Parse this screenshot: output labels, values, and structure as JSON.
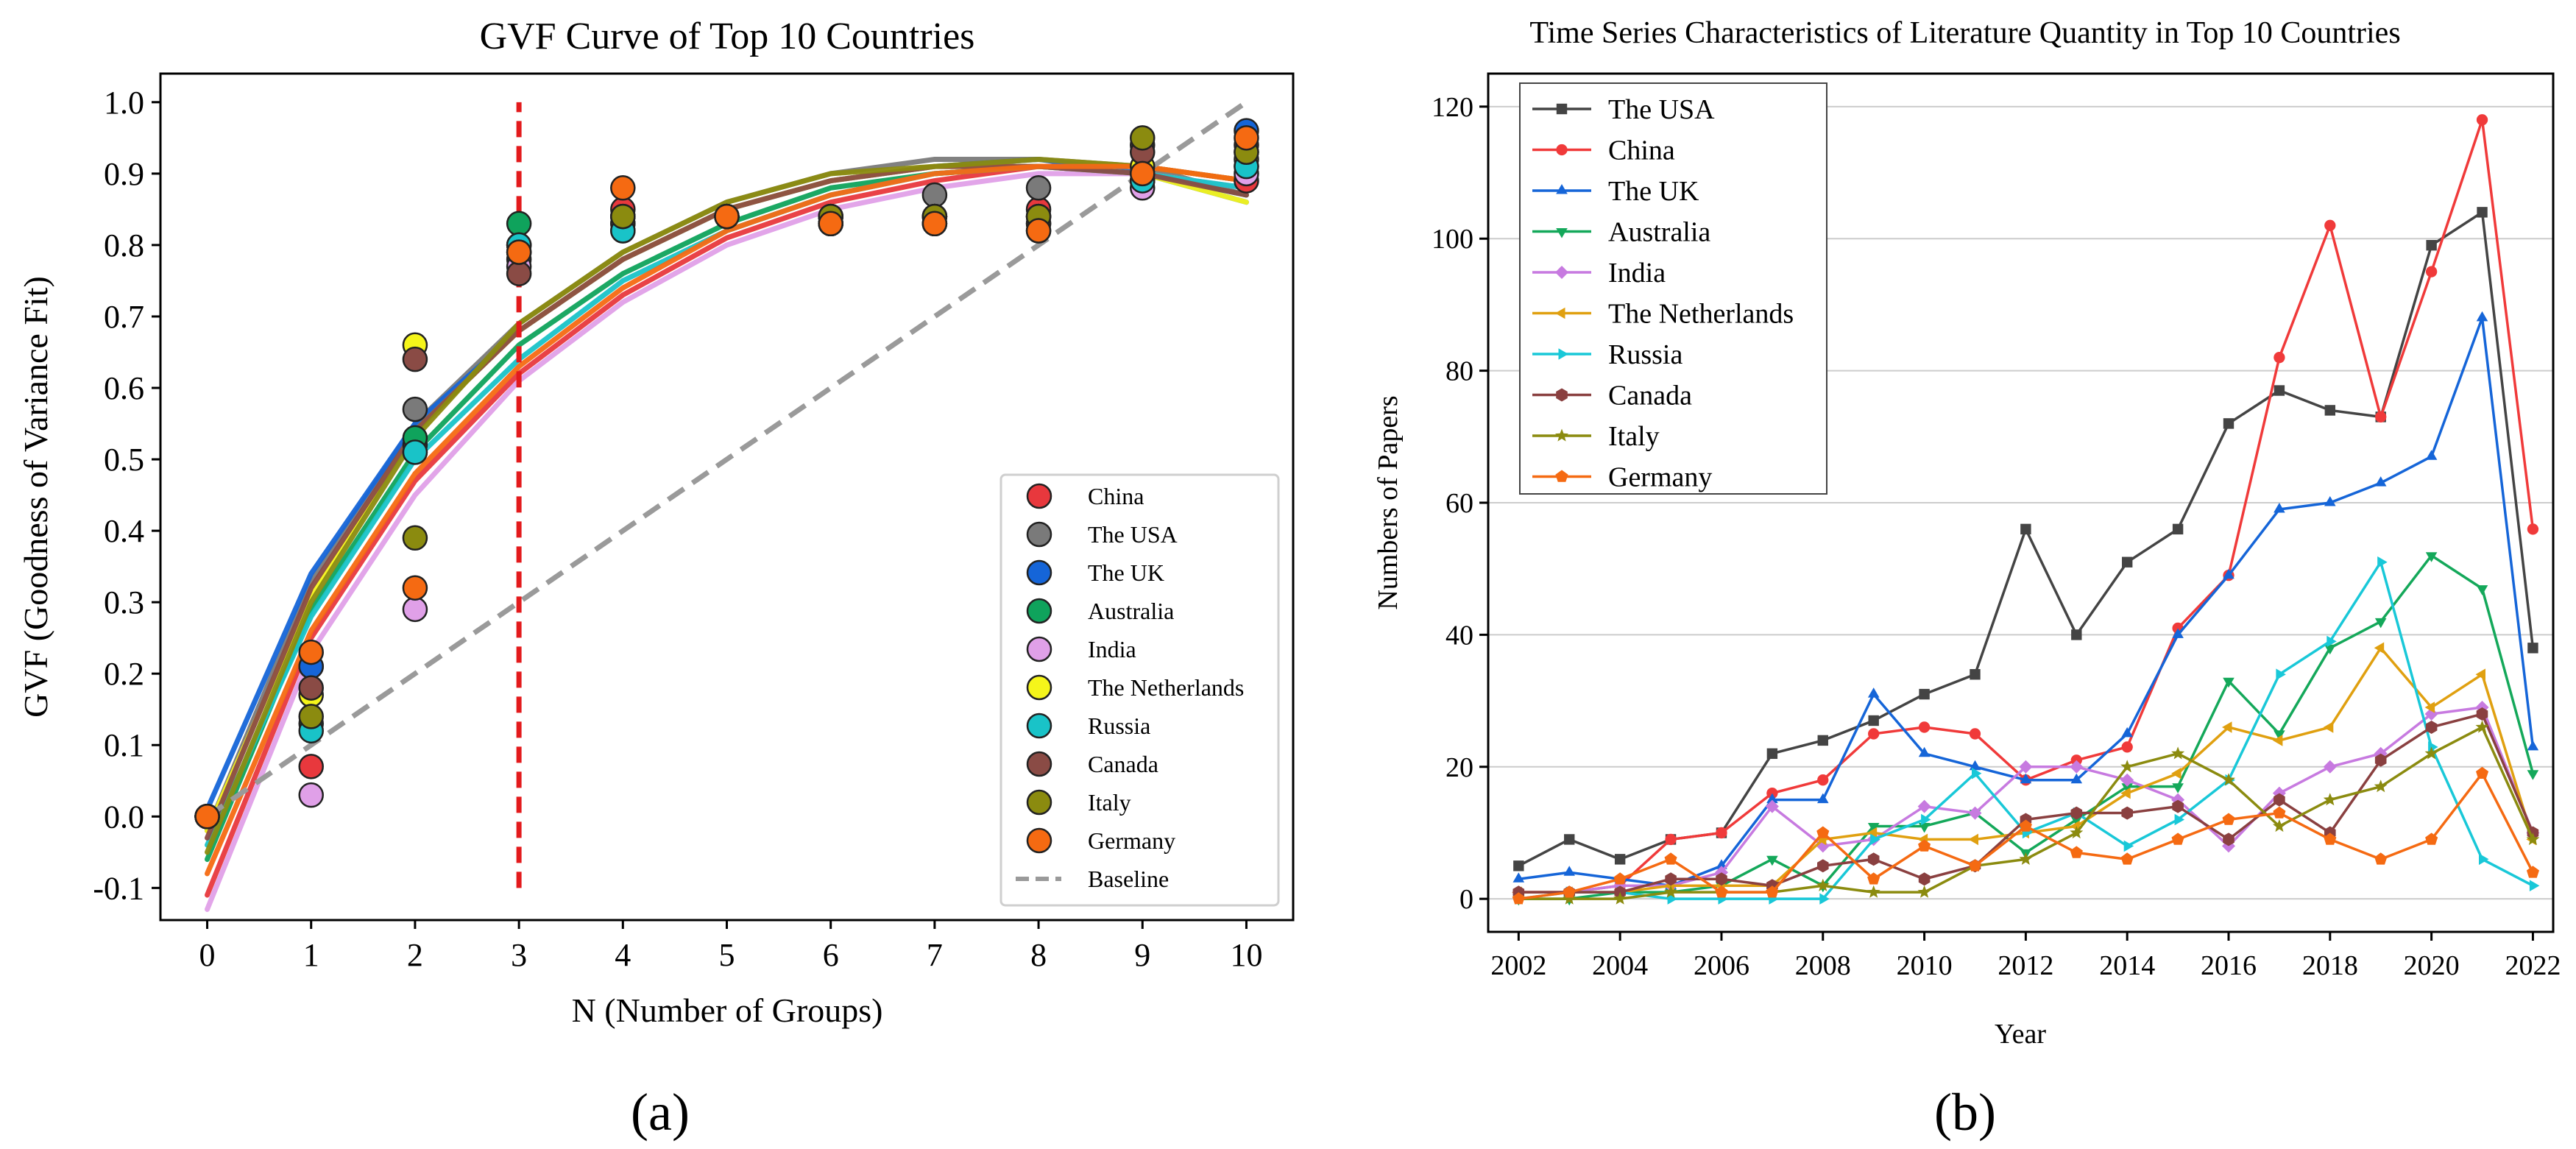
{
  "colors": {
    "China": "#e8383d",
    "The USA": "#7a7a7a",
    "The UK": "#1565d8",
    "Australia": "#0fa35c",
    "India": "#e0a0e8",
    "The Netherlands": "#f5f51a",
    "Russia": "#19c3c8",
    "Canada": "#8a4b45",
    "Italy": "#8b8b0f",
    "Germany": "#f56a12",
    "Baseline": "#9a9a9a",
    "Threshold": "#e31a1c"
  },
  "line_colors_b": {
    "The USA": "#444444",
    "China": "#f03a3a",
    "The UK": "#1565d8",
    "Australia": "#14a85a",
    "India": "#c77ae0",
    "The Netherlands": "#e0a010",
    "Russia": "#19c8d8",
    "Canada": "#8a4040",
    "Italy": "#8b8b0f",
    "Germany": "#f56a12"
  },
  "markers_b": {
    "The USA": "square",
    "China": "circle",
    "The UK": "triangle-up",
    "Australia": "triangle-down",
    "India": "diamond",
    "The Netherlands": "triangle-left",
    "Russia": "triangle-right",
    "Canada": "hexagon",
    "Italy": "star",
    "Germany": "pentagon"
  },
  "panel_labels": {
    "a": "(a)",
    "b": "(b)"
  },
  "chart_data": [
    {
      "type": "scatter",
      "title": "GVF Curve of Top 10 Countries",
      "xlabel": "N (Number of Groups)",
      "ylabel": "GVF (Goodness of Variance Fit)",
      "xlim": [
        -0.45,
        10.45
      ],
      "ylim": [
        -0.145,
        1.04
      ],
      "xticks": [
        0,
        1,
        2,
        3,
        4,
        5,
        6,
        7,
        8,
        9,
        10
      ],
      "yticks": [
        -0.1,
        0.0,
        0.1,
        0.2,
        0.3,
        0.4,
        0.5,
        0.6,
        0.7,
        0.8,
        0.9,
        1.0
      ],
      "ytick_labels": [
        "-0.1",
        "0.0",
        "0.1",
        "0.2",
        "0.3",
        "0.4",
        "0.5",
        "0.6",
        "0.7",
        "0.8",
        "0.9",
        "1.0"
      ],
      "x": [
        0,
        1,
        2,
        3,
        4,
        5,
        6,
        7,
        8,
        9,
        10
      ],
      "series": [
        {
          "name": "China",
          "points": [
            0.0,
            0.07,
            0.52,
            0.79,
            0.85,
            0.84,
            0.83,
            0.83,
            0.85,
            0.89,
            0.89
          ],
          "fit": [
            -0.11,
            0.25,
            0.47,
            0.62,
            0.73,
            0.81,
            0.86,
            0.89,
            0.91,
            0.91,
            0.89
          ]
        },
        {
          "name": "The USA",
          "points": [
            0.0,
            0.21,
            0.57,
            0.8,
            0.84,
            0.84,
            0.84,
            0.87,
            0.88,
            0.94,
            0.93
          ],
          "fit": [
            -0.02,
            0.33,
            0.55,
            0.69,
            0.79,
            0.86,
            0.9,
            0.92,
            0.92,
            0.91,
            0.87
          ]
        },
        {
          "name": "The UK",
          "points": [
            0.0,
            0.21,
            0.51,
            0.78,
            0.82,
            0.84,
            0.83,
            0.84,
            0.84,
            0.89,
            0.96
          ],
          "fit": [
            0.01,
            0.34,
            0.55,
            0.68,
            0.78,
            0.85,
            0.89,
            0.91,
            0.92,
            0.9,
            0.86
          ]
        },
        {
          "name": "Australia",
          "points": [
            0.0,
            0.13,
            0.53,
            0.83,
            0.83,
            0.84,
            0.84,
            0.84,
            0.83,
            0.9,
            0.91
          ],
          "fit": [
            -0.06,
            0.29,
            0.51,
            0.66,
            0.76,
            0.83,
            0.88,
            0.9,
            0.91,
            0.9,
            0.87
          ]
        },
        {
          "name": "India",
          "points": [
            0.0,
            0.03,
            0.29,
            0.77,
            0.83,
            0.84,
            0.83,
            0.83,
            0.82,
            0.88,
            0.9
          ],
          "fit": [
            -0.13,
            0.23,
            0.45,
            0.61,
            0.72,
            0.8,
            0.85,
            0.88,
            0.9,
            0.9,
            0.88
          ]
        },
        {
          "name": "The Netherlands",
          "points": [
            0.0,
            0.17,
            0.66,
            0.8,
            0.84,
            0.84,
            0.83,
            0.84,
            0.84,
            0.91,
            0.92
          ],
          "fit": [
            -0.02,
            0.31,
            0.54,
            0.68,
            0.78,
            0.85,
            0.89,
            0.91,
            0.91,
            0.9,
            0.86
          ]
        },
        {
          "name": "Russia",
          "points": [
            0.0,
            0.12,
            0.51,
            0.8,
            0.82,
            0.84,
            0.84,
            0.84,
            0.84,
            0.89,
            0.91
          ],
          "fit": [
            -0.04,
            0.28,
            0.5,
            0.64,
            0.75,
            0.82,
            0.87,
            0.9,
            0.91,
            0.9,
            0.88
          ]
        },
        {
          "name": "Canada",
          "points": [
            0.0,
            0.18,
            0.64,
            0.76,
            0.84,
            0.84,
            0.83,
            0.83,
            0.83,
            0.93,
            0.94
          ],
          "fit": [
            -0.03,
            0.32,
            0.54,
            0.68,
            0.78,
            0.85,
            0.89,
            0.91,
            0.91,
            0.9,
            0.87
          ]
        },
        {
          "name": "Italy",
          "points": [
            0.0,
            0.14,
            0.39,
            0.79,
            0.84,
            0.84,
            0.84,
            0.84,
            0.84,
            0.95,
            0.93
          ],
          "fit": [
            -0.05,
            0.3,
            0.53,
            0.69,
            0.79,
            0.86,
            0.9,
            0.91,
            0.92,
            0.91,
            0.89
          ]
        },
        {
          "name": "Germany",
          "points": [
            0.0,
            0.23,
            0.32,
            0.79,
            0.88,
            0.84,
            0.83,
            0.83,
            0.82,
            0.9,
            0.95
          ],
          "fit": [
            -0.08,
            0.26,
            0.48,
            0.63,
            0.74,
            0.82,
            0.87,
            0.9,
            0.91,
            0.91,
            0.89
          ]
        }
      ],
      "baseline": {
        "label": "Baseline",
        "x": [
          0,
          10
        ],
        "y": [
          0.0,
          1.0
        ]
      },
      "threshold_line": {
        "x": 3,
        "y": [
          -0.1,
          1.0
        ]
      },
      "legend": {
        "placement": "bottom-right"
      }
    },
    {
      "type": "line",
      "title": "Time Series Characteristics of Literature Quantity in Top 10 Countries",
      "xlabel": "Year",
      "ylabel": "Numbers of Papers",
      "xlim": [
        2001.4,
        2022.4
      ],
      "ylim": [
        -5,
        125
      ],
      "xticks": [
        2002,
        2004,
        2006,
        2008,
        2010,
        2012,
        2014,
        2016,
        2018,
        2020,
        2022
      ],
      "yticks": [
        0,
        20,
        40,
        60,
        80,
        100,
        120
      ],
      "grid": "horizontal",
      "x": [
        2002,
        2003,
        2004,
        2005,
        2006,
        2007,
        2008,
        2009,
        2010,
        2011,
        2012,
        2013,
        2014,
        2015,
        2016,
        2017,
        2018,
        2019,
        2020,
        2021,
        2022
      ],
      "series": [
        {
          "name": "The USA",
          "values": [
            5,
            9,
            6,
            9,
            10,
            22,
            24,
            27,
            31,
            34,
            56,
            40,
            51,
            56,
            72,
            77,
            74,
            73,
            99,
            104,
            38
          ]
        },
        {
          "name": "China",
          "values": [
            1,
            1,
            2,
            9,
            10,
            16,
            18,
            25,
            26,
            25,
            18,
            21,
            23,
            41,
            49,
            82,
            102,
            73,
            95,
            118,
            56
          ]
        },
        {
          "name": "The UK",
          "values": [
            3,
            4,
            3,
            2,
            5,
            15,
            15,
            31,
            22,
            20,
            18,
            18,
            25,
            40,
            49,
            59,
            60,
            63,
            67,
            88,
            23
          ]
        },
        {
          "name": "Australia",
          "values": [
            0,
            0,
            1,
            1,
            2,
            6,
            2,
            11,
            11,
            13,
            7,
            12,
            17,
            17,
            33,
            25,
            38,
            42,
            52,
            47,
            19
          ]
        },
        {
          "name": "India",
          "values": [
            1,
            1,
            2,
            2,
            4,
            14,
            8,
            9,
            14,
            13,
            20,
            20,
            18,
            15,
            8,
            16,
            20,
            22,
            28,
            29,
            10
          ]
        },
        {
          "name": "The Netherlands",
          "values": [
            1,
            1,
            1,
            2,
            2,
            2,
            9,
            10,
            9,
            9,
            10,
            11,
            16,
            19,
            26,
            24,
            26,
            38,
            29,
            34,
            9
          ]
        },
        {
          "name": "Russia",
          "values": [
            0,
            1,
            1,
            0,
            0,
            0,
            0,
            9,
            12,
            19,
            10,
            13,
            8,
            12,
            18,
            34,
            39,
            51,
            23,
            6,
            2
          ]
        },
        {
          "name": "Canada",
          "values": [
            1,
            1,
            1,
            3,
            3,
            2,
            5,
            6,
            3,
            5,
            12,
            13,
            13,
            14,
            9,
            15,
            10,
            21,
            26,
            28,
            10
          ]
        },
        {
          "name": "Italy",
          "values": [
            0,
            0,
            0,
            1,
            1,
            1,
            2,
            1,
            1,
            5,
            6,
            10,
            20,
            22,
            18,
            11,
            15,
            17,
            22,
            26,
            9
          ]
        },
        {
          "name": "Germany",
          "values": [
            0,
            1,
            3,
            6,
            1,
            1,
            10,
            3,
            8,
            5,
            11,
            7,
            6,
            9,
            12,
            13,
            9,
            6,
            9,
            19,
            4
          ]
        }
      ],
      "legend": {
        "placement": "top-left"
      }
    }
  ]
}
